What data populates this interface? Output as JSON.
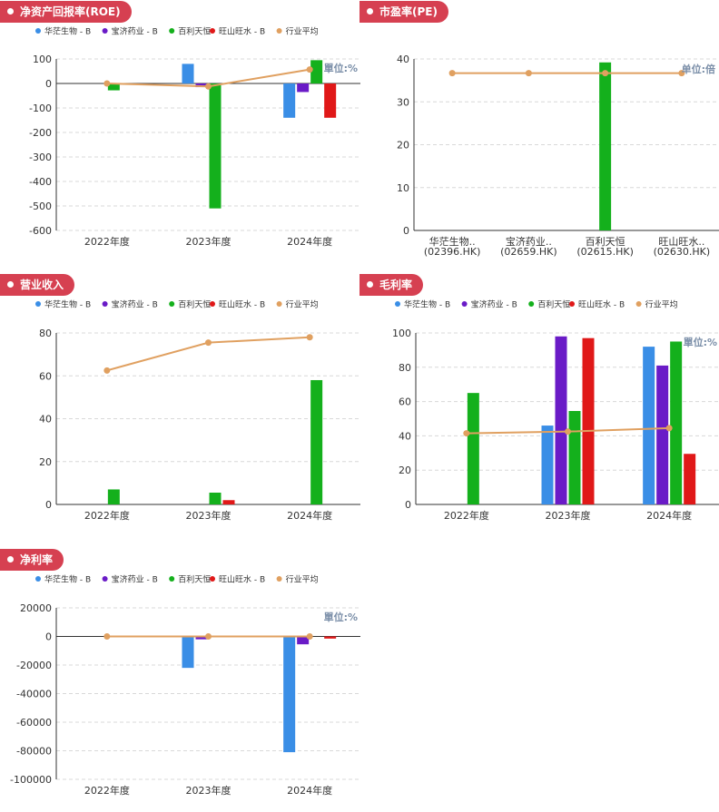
{
  "colors": {
    "badge_bg": "#d64051",
    "series": [
      "#3a8ee6",
      "#6a1bc7",
      "#14b01c",
      "#e01818",
      "#e0a060"
    ],
    "avg_line": "#e0a060",
    "axis": "#333333",
    "grid": "#d8d8d8",
    "unit_text": "#7a8ea8"
  },
  "legend": [
    "华茫生物 - B",
    "宝济药业 - B",
    "百利天恒",
    "旺山旺水 - B",
    "行业平均"
  ],
  "chart_data": [
    {
      "id": "roe",
      "title": "净资产回报率(ROE)",
      "type": "bar",
      "categories": [
        "2022年度",
        "2023年度",
        "2024年度"
      ],
      "ylim": [
        -600,
        100
      ],
      "yticks": [
        100,
        0,
        -100,
        -200,
        -300,
        -400,
        -500,
        -600
      ],
      "unit": "單位:%",
      "series": [
        {
          "name": "华茫生物 - B",
          "values": [
            null,
            80,
            -140
          ]
        },
        {
          "name": "宝济药业 - B",
          "values": [
            null,
            -15,
            -35
          ]
        },
        {
          "name": "百利天恒",
          "values": [
            -28,
            -510,
            95
          ]
        },
        {
          "name": "旺山旺水 - B",
          "values": [
            null,
            null,
            -140
          ]
        }
      ],
      "line": {
        "name": "行业平均",
        "values": [
          0,
          -12,
          57
        ]
      }
    },
    {
      "id": "pe",
      "title": "市盈率(PE)",
      "type": "bar",
      "categories": [
        "华茫生物..\n(02396.HK)",
        "宝济药业..\n(02659.HK)",
        "百利天恒\n(02615.HK)",
        "旺山旺水..\n(02630.HK)"
      ],
      "ylim": [
        0,
        40
      ],
      "yticks": [
        40,
        30,
        20,
        10,
        0
      ],
      "unit": "单位:倍",
      "series": [
        {
          "name": "市盈率",
          "values": [
            null,
            null,
            39.2,
            null
          ]
        }
      ],
      "line": {
        "name": "行业平均",
        "values": [
          36.7,
          36.7,
          36.7,
          36.7
        ]
      }
    },
    {
      "id": "revenue",
      "title": "营业收入",
      "type": "bar",
      "categories": [
        "2022年度",
        "2023年度",
        "2024年度"
      ],
      "ylim": [
        0,
        80
      ],
      "yticks": [
        80,
        60,
        40,
        20,
        0
      ],
      "unit": "",
      "series": [
        {
          "name": "华茫生物 - B",
          "values": [
            null,
            null,
            null
          ]
        },
        {
          "name": "宝济药业 - B",
          "values": [
            null,
            null,
            null
          ]
        },
        {
          "name": "百利天恒",
          "values": [
            7,
            5.5,
            58
          ]
        },
        {
          "name": "旺山旺水 - B",
          "values": [
            null,
            2,
            null
          ]
        }
      ],
      "line": {
        "name": "行业平均",
        "values": [
          62.5,
          75.5,
          78
        ]
      }
    },
    {
      "id": "gross",
      "title": "毛利率",
      "type": "bar",
      "categories": [
        "2022年度",
        "2023年度",
        "2024年度"
      ],
      "ylim": [
        0,
        100
      ],
      "yticks": [
        100,
        80,
        60,
        40,
        20,
        0
      ],
      "unit": "單位:%",
      "series": [
        {
          "name": "华茫生物 - B",
          "values": [
            null,
            46,
            92
          ]
        },
        {
          "name": "宝济药业 - B",
          "values": [
            null,
            98,
            81
          ]
        },
        {
          "name": "百利天恒",
          "values": [
            65,
            54.5,
            95
          ]
        },
        {
          "name": "旺山旺水 - B",
          "values": [
            null,
            97,
            29.5
          ]
        }
      ],
      "line": {
        "name": "行业平均",
        "values": [
          41.5,
          42.5,
          44.5
        ]
      }
    },
    {
      "id": "net",
      "title": "净利率",
      "type": "bar",
      "categories": [
        "2022年度",
        "2023年度",
        "2024年度"
      ],
      "ylim": [
        -100000,
        20000
      ],
      "yticks": [
        20000,
        0,
        -20000,
        -40000,
        -60000,
        -80000,
        -100000
      ],
      "unit": "單位:%",
      "series": [
        {
          "name": "华茫生物 - B",
          "values": [
            null,
            -22000,
            -81000
          ]
        },
        {
          "name": "宝济药业 - B",
          "values": [
            null,
            -2000,
            -5500
          ]
        },
        {
          "name": "百利天恒",
          "values": [
            null,
            null,
            null
          ]
        },
        {
          "name": "旺山旺水 - B",
          "values": [
            null,
            null,
            -1500
          ]
        }
      ],
      "line": {
        "name": "行业平均",
        "values": [
          0,
          0,
          0
        ]
      }
    }
  ]
}
